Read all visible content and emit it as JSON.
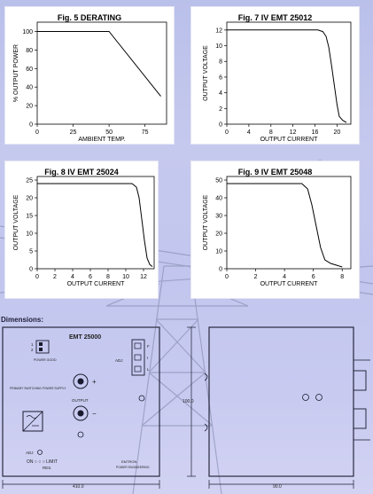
{
  "chart_data": [
    {
      "type": "line",
      "title": "Fig. 5 DERATING",
      "xlabel": "AMBIENT TEMP.",
      "ylabel": "% OUTPUT POWER",
      "xlim": [
        0,
        90
      ],
      "ylim": [
        0,
        110
      ],
      "xticks": [
        0,
        25,
        50,
        75
      ],
      "yticks": [
        0,
        20,
        40,
        60,
        80,
        100
      ],
      "series": [
        {
          "x": [
            0,
            50,
            86
          ],
          "y": [
            100,
            100,
            30
          ]
        }
      ]
    },
    {
      "type": "line",
      "title": "Fig. 7 IV EMT 25012",
      "xlabel": "OUTPUT CURRENT",
      "ylabel": "OUTPUT VOLTAGE",
      "xlim": [
        0,
        22.5
      ],
      "ylim": [
        0,
        13
      ],
      "xticks": [
        0,
        4,
        8,
        12,
        16,
        20
      ],
      "yticks": [
        0,
        2,
        4,
        6,
        8,
        10,
        12
      ],
      "series": [
        {
          "x": [
            0,
            16.5,
            17.4,
            18.0,
            18.5,
            19.0,
            19.5,
            20.0,
            20.4,
            21.0,
            21.7
          ],
          "y": [
            12,
            12,
            11.8,
            11.2,
            9.8,
            7.5,
            5.0,
            2.5,
            1.0,
            0.5,
            0.2
          ]
        }
      ]
    },
    {
      "type": "line",
      "title": "Fig. 8 IV EMT 25024",
      "xlabel": "OUTPUT CURRENT",
      "ylabel": "OUTPUT VOLTAGE",
      "xlim": [
        0,
        13.2
      ],
      "ylim": [
        0,
        26
      ],
      "xticks": [
        0,
        2,
        4,
        6,
        8,
        10,
        12
      ],
      "yticks": [
        0,
        5,
        10,
        15,
        20,
        25
      ],
      "series": [
        {
          "x": [
            0,
            10.7,
            11.2,
            11.5,
            11.8,
            12.1,
            12.4,
            12.7,
            13.0
          ],
          "y": [
            24,
            24,
            23,
            20,
            14,
            8,
            3,
            1.2,
            0.6
          ]
        }
      ]
    },
    {
      "type": "line",
      "title": "Fig. 9 IV EMT 25048",
      "xlabel": "OUTPUT CURRENT",
      "ylabel": "OUTPUT VOLTAGE",
      "xlim": [
        0,
        8.6
      ],
      "ylim": [
        0,
        52
      ],
      "xticks": [
        0,
        2,
        4,
        6,
        8
      ],
      "yticks": [
        0,
        10,
        20,
        30,
        40,
        50
      ],
      "series": [
        {
          "x": [
            0,
            5.2,
            5.6,
            5.9,
            6.2,
            6.5,
            6.8,
            7.2,
            7.6,
            8.0
          ],
          "y": [
            48,
            48,
            45,
            36,
            24,
            12,
            5,
            3,
            2,
            1
          ]
        }
      ]
    }
  ],
  "dimensions": {
    "label": "Dimensions:",
    "front": {
      "model": "EMT 25000",
      "power_good": "POWER GOOD",
      "adj_label": "ADJ",
      "adj_letters": [
        "F",
        "I",
        "L"
      ],
      "supply_text": "PRIMARY SWITCHING POWER SUPPLY",
      "output_label": "OUTPUT",
      "plus_sign": "+",
      "minus_sign": "−",
      "adj_pot": "ADJ",
      "limit_label": "ON ○ ○ ○ LIMIT",
      "res_label": "RES.",
      "brand_line1": "EMTRON",
      "brand_line2": "POWER ENGINEERING",
      "width_dim": "410.0"
    },
    "height_dim": "100.0",
    "side": {
      "depth_dim": "90.0"
    }
  }
}
